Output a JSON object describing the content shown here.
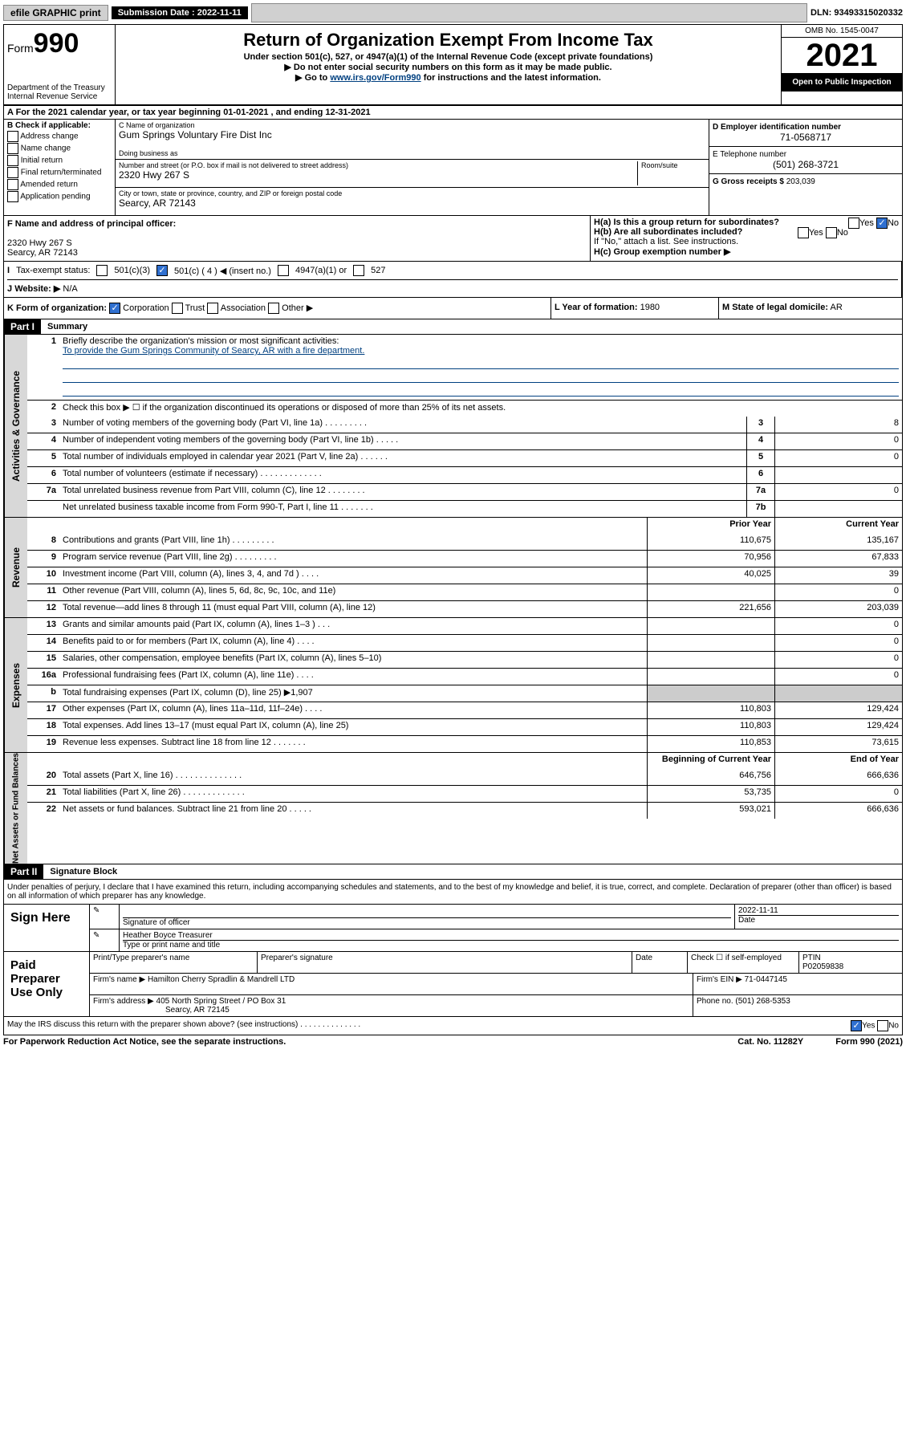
{
  "topbar": {
    "efile": "efile GRAPHIC print",
    "subdate_label": "Submission Date : 2022-11-11",
    "dln": "DLN: 93493315020332"
  },
  "header": {
    "form_label": "Form",
    "form_number": "990",
    "dept": "Department of the Treasury",
    "irs": "Internal Revenue Service",
    "title": "Return of Organization Exempt From Income Tax",
    "subtitle": "Under section 501(c), 527, or 4947(a)(1) of the Internal Revenue Code (except private foundations)",
    "instr1": "▶ Do not enter social security numbers on this form as it may be made public.",
    "instr2_pre": "▶ Go to ",
    "instr2_link": "www.irs.gov/Form990",
    "instr2_post": " for instructions and the latest information.",
    "omb": "OMB No. 1545-0047",
    "year": "2021",
    "open": "Open to Public Inspection"
  },
  "rowA": "A For the 2021 calendar year, or tax year beginning 01-01-2021   , and ending 12-31-2021",
  "colB": {
    "title": "B Check if applicable:",
    "items": [
      "Address change",
      "Name change",
      "Initial return",
      "Final return/terminated",
      "Amended return",
      "Application pending"
    ]
  },
  "colC": {
    "name_lbl": "C Name of organization",
    "name": "Gum Springs Voluntary Fire Dist Inc",
    "dba_lbl": "Doing business as",
    "dba": "",
    "addr_lbl": "Number and street (or P.O. box if mail is not delivered to street address)",
    "room_lbl": "Room/suite",
    "addr": "2320 Hwy 267 S",
    "city_lbl": "City or town, state or province, country, and ZIP or foreign postal code",
    "city": "Searcy, AR  72143"
  },
  "colD": {
    "ein_lbl": "D Employer identification number",
    "ein": "71-0568717",
    "tel_lbl": "E Telephone number",
    "tel": "(501) 268-3721",
    "gross_lbl": "G Gross receipts $",
    "gross": "203,039"
  },
  "rowF": {
    "lbl": "F Name and address of principal officer:",
    "addr1": "2320 Hwy 267 S",
    "addr2": "Searcy, AR  72143"
  },
  "rowH": {
    "ha": "H(a)  Is this a group return for subordinates?",
    "hb": "H(b)  Are all subordinates included?",
    "hb_note": "If \"No,\" attach a list. See instructions.",
    "hc": "H(c)  Group exemption number ▶"
  },
  "rowI": {
    "lbl": "Tax-exempt status:",
    "opts": [
      "501(c)(3)",
      "501(c) ( 4 ) ◀ (insert no.)",
      "4947(a)(1) or",
      "527"
    ]
  },
  "rowJ": {
    "lbl": "Website: ▶",
    "val": "N/A"
  },
  "rowK": {
    "k1_lbl": "K Form of organization:",
    "k1_opts": [
      "Corporation",
      "Trust",
      "Association",
      "Other ▶"
    ],
    "k2_lbl": "L Year of formation:",
    "k2_val": "1980",
    "k3_lbl": "M State of legal domicile:",
    "k3_val": "AR"
  },
  "part1": {
    "hdr": "Part I",
    "title": "Summary"
  },
  "section1": {
    "label": "Activities & Governance",
    "line1_lbl": "Briefly describe the organization's mission or most significant activities:",
    "line1_val": "To provide the Gum Springs Community of Searcy, AR with a fire department.",
    "line2": "Check this box ▶ ☐  if the organization discontinued its operations or disposed of more than 25% of its net assets.",
    "rows": [
      {
        "n": "3",
        "d": "Number of voting members of the governing body (Part VI, line 1a)   .   .   .   .   .   .   .   .   .",
        "box": "3",
        "v": "8"
      },
      {
        "n": "4",
        "d": "Number of independent voting members of the governing body (Part VI, line 1b)   .   .   .   .   .",
        "box": "4",
        "v": "0"
      },
      {
        "n": "5",
        "d": "Total number of individuals employed in calendar year 2021 (Part V, line 2a)   .   .   .   .   .   .",
        "box": "5",
        "v": "0"
      },
      {
        "n": "6",
        "d": "Total number of volunteers (estimate if necessary)   .   .   .   .   .   .   .   .   .   .   .   .   .",
        "box": "6",
        "v": ""
      },
      {
        "n": "7a",
        "d": "Total unrelated business revenue from Part VIII, column (C), line 12   .   .   .   .   .   .   .   .",
        "box": "7a",
        "v": "0"
      },
      {
        "n": "",
        "d": "Net unrelated business taxable income from Form 990-T, Part I, line 11   .   .   .   .   .   .   .",
        "box": "7b",
        "v": ""
      }
    ]
  },
  "cols": {
    "prior": "Prior Year",
    "current": "Current Year",
    "begin": "Beginning of Current Year",
    "end": "End of Year"
  },
  "revenue": {
    "label": "Revenue",
    "rows": [
      {
        "n": "8",
        "d": "Contributions and grants (Part VIII, line 1h)   .   .   .   .   .   .   .   .   .",
        "p": "110,675",
        "c": "135,167"
      },
      {
        "n": "9",
        "d": "Program service revenue (Part VIII, line 2g)   .   .   .   .   .   .   .   .   .",
        "p": "70,956",
        "c": "67,833"
      },
      {
        "n": "10",
        "d": "Investment income (Part VIII, column (A), lines 3, 4, and 7d )   .   .   .   .",
        "p": "40,025",
        "c": "39"
      },
      {
        "n": "11",
        "d": "Other revenue (Part VIII, column (A), lines 5, 6d, 8c, 9c, 10c, and 11e)",
        "p": "",
        "c": "0"
      },
      {
        "n": "12",
        "d": "Total revenue—add lines 8 through 11 (must equal Part VIII, column (A), line 12)",
        "p": "221,656",
        "c": "203,039"
      }
    ]
  },
  "expenses": {
    "label": "Expenses",
    "rows": [
      {
        "n": "13",
        "d": "Grants and similar amounts paid (Part IX, column (A), lines 1–3 )   .   .   .",
        "p": "",
        "c": "0"
      },
      {
        "n": "14",
        "d": "Benefits paid to or for members (Part IX, column (A), line 4)   .   .   .   .",
        "p": "",
        "c": "0"
      },
      {
        "n": "15",
        "d": "Salaries, other compensation, employee benefits (Part IX, column (A), lines 5–10)",
        "p": "",
        "c": "0"
      },
      {
        "n": "16a",
        "d": "Professional fundraising fees (Part IX, column (A), line 11e)   .   .   .   .",
        "p": "",
        "c": "0"
      },
      {
        "n": "b",
        "d": "Total fundraising expenses (Part IX, column (D), line 25) ▶1,907",
        "p": "shade",
        "c": "shade"
      },
      {
        "n": "17",
        "d": "Other expenses (Part IX, column (A), lines 11a–11d, 11f–24e)   .   .   .   .",
        "p": "110,803",
        "c": "129,424"
      },
      {
        "n": "18",
        "d": "Total expenses. Add lines 13–17 (must equal Part IX, column (A), line 25)",
        "p": "110,803",
        "c": "129,424"
      },
      {
        "n": "19",
        "d": "Revenue less expenses. Subtract line 18 from line 12   .   .   .   .   .   .   .",
        "p": "110,853",
        "c": "73,615"
      }
    ]
  },
  "netassets": {
    "label": "Net Assets or Fund Balances",
    "rows": [
      {
        "n": "20",
        "d": "Total assets (Part X, line 16)   .   .   .   .   .   .   .   .   .   .   .   .   .   .",
        "p": "646,756",
        "c": "666,636"
      },
      {
        "n": "21",
        "d": "Total liabilities (Part X, line 26)   .   .   .   .   .   .   .   .   .   .   .   .   .",
        "p": "53,735",
        "c": "0"
      },
      {
        "n": "22",
        "d": "Net assets or fund balances. Subtract line 21 from line 20   .   .   .   .   .",
        "p": "593,021",
        "c": "666,636"
      }
    ]
  },
  "part2": {
    "hdr": "Part II",
    "title": "Signature Block"
  },
  "sig": {
    "penalty": "Under penalties of perjury, I declare that I have examined this return, including accompanying schedules and statements, and to the best of my knowledge and belief, it is true, correct, and complete. Declaration of preparer (other than officer) is based on all information of which preparer has any knowledge.",
    "sign_here": "Sign Here",
    "sig_officer": "Signature of officer",
    "sig_date": "2022-11-11",
    "date_lbl": "Date",
    "officer_name": "Heather Boyce  Treasurer",
    "type_name": "Type or print name and title",
    "paid": "Paid Preparer Use Only",
    "prep_name_lbl": "Print/Type preparer's name",
    "prep_sig_lbl": "Preparer's signature",
    "prep_date_lbl": "Date",
    "check_if": "Check ☐ if self-employed",
    "ptin_lbl": "PTIN",
    "ptin": "P02059838",
    "firm_name_lbl": "Firm's name    ▶",
    "firm_name": "Hamilton Cherry Spradlin & Mandrell LTD",
    "firm_ein_lbl": "Firm's EIN ▶",
    "firm_ein": "71-0447145",
    "firm_addr_lbl": "Firm's address ▶",
    "firm_addr1": "405 North Spring Street / PO Box 31",
    "firm_addr2": "Searcy, AR  72145",
    "phone_lbl": "Phone no.",
    "phone": "(501) 268-5353",
    "discuss": "May the IRS discuss this return with the preparer shown above? (see instructions)   .   .   .   .   .   .   .   .   .   .   .   .   .   ."
  },
  "footer": {
    "f1": "For Paperwork Reduction Act Notice, see the separate instructions.",
    "f2": "Cat. No. 11282Y",
    "f3": "Form 990 (2021)"
  }
}
